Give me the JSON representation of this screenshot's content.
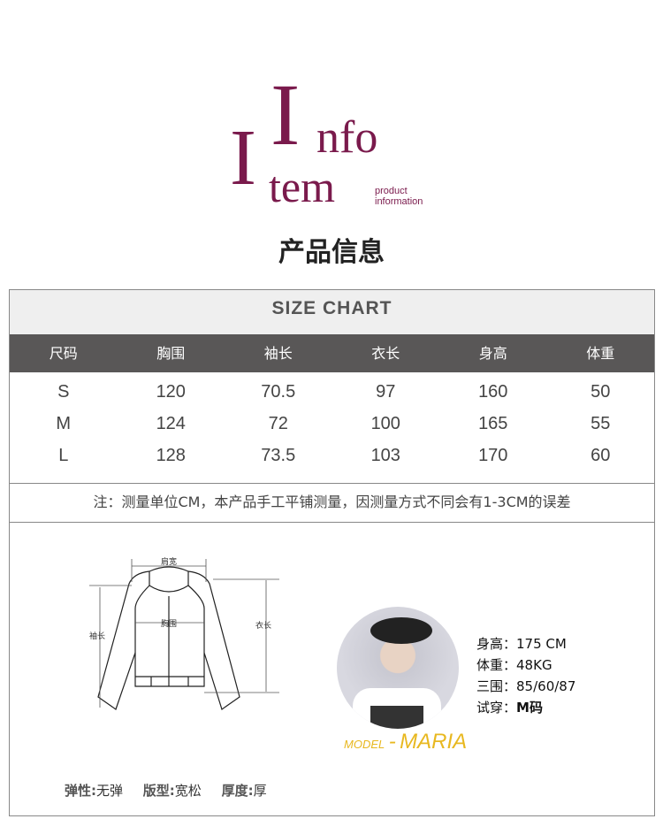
{
  "logo": {
    "text_info": "Info",
    "text_item": "Item",
    "subtitle_line1": "product",
    "subtitle_line2": "information",
    "color": "#7a1a4c"
  },
  "heading": "产品信息",
  "size_chart": {
    "title": "SIZE CHART",
    "columns": [
      "尺码",
      "胸围",
      "袖长",
      "衣长",
      "身高",
      "体重"
    ],
    "rows": [
      [
        "S",
        "120",
        "70.5",
        "97",
        "160",
        "50"
      ],
      [
        "M",
        "124",
        "72",
        "100",
        "165",
        "55"
      ],
      [
        "L",
        "128",
        "73.5",
        "103",
        "170",
        "60"
      ]
    ],
    "note": "注：测量单位CM，本产品手工平铺测量，因测量方式不同会有1-3CM的误差"
  },
  "diagram": {
    "shoulder": "肩宽",
    "chest": "胸围",
    "sleeve": "袖长",
    "length": "衣长"
  },
  "model": {
    "prefix": "MODEL",
    "dash": "-",
    "name": "MARIA",
    "stats": [
      {
        "label": "身高：",
        "value": "175 CM"
      },
      {
        "label": "体重：",
        "value": "48KG"
      },
      {
        "label": "三围：",
        "value": "85/60/87"
      },
      {
        "label": "试穿：",
        "value": "M码"
      }
    ]
  },
  "attributes": [
    {
      "label": "弹性:",
      "value": "无弹"
    },
    {
      "label": "版型:",
      "value": "宽松"
    },
    {
      "label": "厚度:",
      "value": "厚"
    }
  ]
}
